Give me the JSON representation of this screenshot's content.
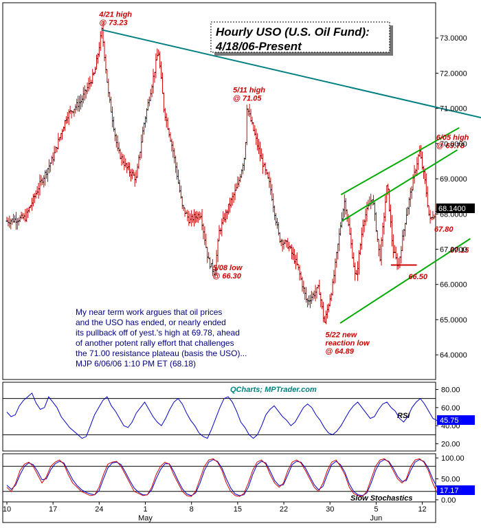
{
  "title_line1": "Hourly USO (U.S. Oil Fund):",
  "title_line2": "4/18/06-Present",
  "watermark": "QCharts; MPTrader.com",
  "last_price_label": "68.1400",
  "rsi_label": "RSI",
  "rsi_value_label": "45.75",
  "stoch_label": "Slow Stochastics",
  "stoch_value_label": "17.17",
  "commentary": [
    "My near term work argues that oil prices",
    "and the USO has ended, or nearly ended",
    "its pullback off of yest.'s high at 69.78, ahead",
    "of another potent rally effort that challenges",
    "the 71.00 resistance plateau (basis the USO)...",
    "MJP 6/06/06 1:10 PM ET  (68.18)"
  ],
  "colors": {
    "bar": "#cc0000",
    "resistance_line": "#008080",
    "channel": "#00aa00",
    "support_line": "#cc0000",
    "rsi_line": "#0000cc",
    "stoch_k": "#cc0000",
    "stoch_d": "#0000cc",
    "label_box": "#0000ff",
    "annotation": "#cc0000",
    "commentary": "#000080"
  },
  "chart_data": [
    {
      "type": "ohlc",
      "ylim": [
        63.3,
        74.0
      ],
      "y_ticks": [
        "73.0000",
        "72.0000",
        "71.0000",
        "70.0000",
        "69.0000",
        "68.0000",
        "67.0000",
        "66.0000",
        "65.0000",
        "64.0000"
      ],
      "y_tick_values": [
        73,
        72,
        71,
        70,
        69,
        68,
        67,
        66,
        65,
        64
      ],
      "x_ticks": [
        "10",
        "17",
        "24",
        "1",
        "8",
        "15",
        "22",
        "30",
        "5",
        "12"
      ],
      "x_tick_sessions": [
        0,
        5,
        10,
        15,
        20,
        25,
        30,
        35,
        40,
        45
      ],
      "x_month_labels": [
        {
          "label": "May",
          "session": 15
        },
        {
          "label": "Jun",
          "session": 40
        }
      ],
      "sessions_shown": 46,
      "bars_per_session": 7,
      "price_path": [
        [
          0,
          67.8
        ],
        [
          2,
          67.9
        ],
        [
          3.5,
          68.8
        ],
        [
          5,
          69.6
        ],
        [
          6.5,
          70.8
        ],
        [
          8,
          71.2
        ],
        [
          9.5,
          72.0
        ],
        [
          10.3,
          73.23
        ],
        [
          11,
          71.4
        ],
        [
          12,
          69.8
        ],
        [
          13,
          69.3
        ],
        [
          14,
          69.0
        ],
        [
          14.8,
          70.5
        ],
        [
          15.8,
          71.8
        ],
        [
          16.4,
          72.65
        ],
        [
          17,
          71.0
        ],
        [
          18,
          69.8
        ],
        [
          19,
          68.2
        ],
        [
          19.8,
          67.8
        ],
        [
          20.2,
          67.9
        ],
        [
          21,
          68.0
        ],
        [
          21.8,
          66.7
        ],
        [
          22.5,
          66.3
        ],
        [
          23,
          67.5
        ],
        [
          24,
          68.2
        ],
        [
          25,
          68.8
        ],
        [
          25.8,
          69.7
        ],
        [
          26,
          71.05
        ],
        [
          26.8,
          70.3
        ],
        [
          27.5,
          69.6
        ],
        [
          28.5,
          68.8
        ],
        [
          29.5,
          67.3
        ],
        [
          30.5,
          67.1
        ],
        [
          31.5,
          66.5
        ],
        [
          32.5,
          65.5
        ],
        [
          33.8,
          65.9
        ],
        [
          34.4,
          64.89
        ],
        [
          35.3,
          66.0
        ],
        [
          36.2,
          67.8
        ],
        [
          36.6,
          68.4
        ],
        [
          37.2,
          67.3
        ],
        [
          37.8,
          66.1
        ],
        [
          38.6,
          67.8
        ],
        [
          39.6,
          68.5
        ],
        [
          40.4,
          66.7
        ],
        [
          41.2,
          68.9
        ],
        [
          41.8,
          67.0
        ],
        [
          42.4,
          66.5
        ],
        [
          43.2,
          67.9
        ],
        [
          44.2,
          69.2
        ],
        [
          44.7,
          69.78
        ],
        [
          45.3,
          68.9
        ],
        [
          45.8,
          67.8
        ],
        [
          46.6,
          68.14
        ]
      ],
      "resistance_line": {
        "from": [
          10.3,
          73.23
        ],
        "to": [
          52.3,
          70.68
        ]
      },
      "channel_upper_lines": [
        {
          "from": [
            36.3,
            67.8
          ],
          "to": [
            48.8,
            69.82
          ]
        },
        {
          "from": [
            36.2,
            68.55
          ],
          "to": [
            49.0,
            70.45
          ]
        }
      ],
      "channel_lower_line": {
        "from": [
          36.1,
          64.9
        ],
        "to": [
          50.2,
          67.3
        ]
      },
      "support_line": {
        "from": [
          41.6,
          66.55
        ],
        "to": [
          44.4,
          66.55
        ]
      },
      "annotations": [
        {
          "lines": [
            "4/21 high",
            "@ 73.23"
          ],
          "x": 10.0,
          "y": 73.6
        },
        {
          "lines": [
            "5/11 high",
            "@ 71.05"
          ],
          "x": 24.5,
          "y": 71.45
        },
        {
          "lines": [
            "5/08 low",
            "@ 66.30"
          ],
          "x": 22.3,
          "y": 66.4
        },
        {
          "lines": [
            "5/22 new",
            "reaction low",
            "@ 64.89"
          ],
          "x": 34.5,
          "y": 64.5
        },
        {
          "lines": [
            "6/05 high",
            "@ 69.78"
          ],
          "x": 46.5,
          "y": 70.1
        },
        {
          "lines": [
            "67.80"
          ],
          "x": 46.3,
          "y": 67.5
        },
        {
          "lines": [
            "67.15"
          ],
          "x": 48.0,
          "y": 66.9
        },
        {
          "lines": [
            "66.50"
          ],
          "x": 43.5,
          "y": 66.15
        }
      ]
    },
    {
      "type": "line",
      "name": "RSI",
      "ylim": [
        12,
        88
      ],
      "y_ticks": [
        80,
        60,
        40,
        20
      ],
      "levels": [
        70,
        30
      ],
      "values": [
        55,
        50,
        52,
        62,
        68,
        72,
        76,
        65,
        58,
        60,
        72,
        66,
        60,
        50,
        44,
        38,
        34,
        30,
        26,
        28,
        40,
        52,
        60,
        68,
        72,
        62,
        56,
        48,
        40,
        38,
        44,
        54,
        60,
        66,
        58,
        50,
        44,
        40,
        48,
        58,
        66,
        70,
        64,
        54,
        46,
        40,
        32,
        28,
        26,
        36,
        48,
        60,
        70,
        72,
        66,
        56,
        44,
        38,
        30,
        26,
        30,
        40,
        52,
        58,
        62,
        56,
        50,
        46,
        40,
        44,
        52,
        60,
        64,
        60,
        52,
        46,
        38,
        32,
        30,
        34,
        40,
        48,
        56,
        62,
        66,
        60,
        54,
        48,
        50,
        58,
        64,
        66,
        60,
        56,
        48,
        44,
        50,
        60,
        66,
        70,
        64,
        56,
        48,
        45.75
      ]
    },
    {
      "type": "line",
      "name": "Slow Stochastics",
      "ylim": [
        -5,
        110
      ],
      "y_ticks": [
        100,
        50,
        0
      ],
      "levels": [
        80,
        20
      ],
      "k_values": [
        30,
        20,
        40,
        70,
        85,
        90,
        80,
        60,
        40,
        55,
        80,
        90,
        95,
        85,
        60,
        40,
        30,
        20,
        15,
        10,
        12,
        30,
        60,
        85,
        90,
        92,
        80,
        60,
        40,
        20,
        15,
        10,
        12,
        30,
        60,
        80,
        90,
        85,
        60,
        40,
        20,
        10,
        8,
        20,
        50,
        80,
        95,
        98,
        90,
        70,
        40,
        20,
        10,
        8,
        15,
        40,
        70,
        90,
        95,
        85,
        60,
        40,
        30,
        40,
        70,
        90,
        95,
        88,
        70,
        50,
        30,
        20,
        40,
        70,
        90,
        95,
        80,
        60,
        30,
        15,
        10,
        8,
        20,
        50,
        80,
        95,
        98,
        90,
        70,
        50,
        40,
        50,
        80,
        95,
        98,
        90,
        70,
        40,
        17.17
      ],
      "d_values": [
        35,
        25,
        35,
        60,
        80,
        88,
        84,
        68,
        48,
        50,
        72,
        86,
        92,
        88,
        68,
        48,
        34,
        24,
        18,
        14,
        12,
        22,
        50,
        76,
        88,
        90,
        84,
        66,
        46,
        28,
        18,
        12,
        12,
        24,
        50,
        72,
        86,
        86,
        68,
        46,
        26,
        14,
        10,
        16,
        40,
        70,
        90,
        96,
        92,
        76,
        50,
        28,
        14,
        10,
        12,
        30,
        60,
        84,
        92,
        88,
        68,
        46,
        34,
        36,
        60,
        84,
        92,
        90,
        76,
        56,
        36,
        24,
        32,
        60,
        84,
        92,
        84,
        66,
        38,
        20,
        12,
        10,
        16,
        40,
        70,
        90,
        96,
        92,
        76,
        56,
        44,
        46,
        70,
        90,
        96,
        92,
        76,
        50,
        30
      ]
    }
  ]
}
